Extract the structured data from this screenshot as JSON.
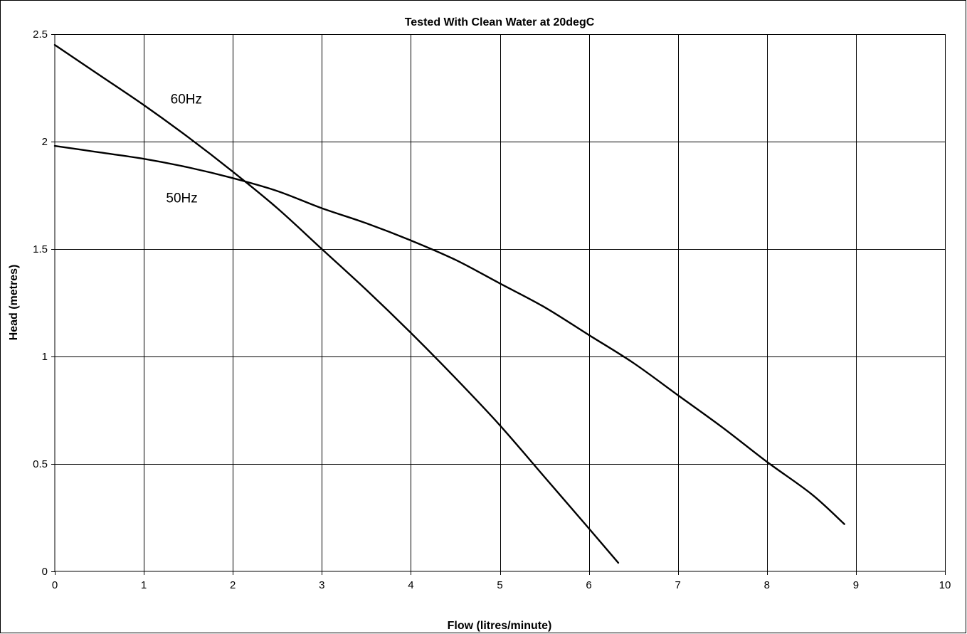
{
  "chart_data": {
    "type": "line",
    "title": "Tested With Clean Water at 20degC",
    "xlabel": "Flow (litres/minute)",
    "ylabel": "Head (metres)",
    "xlim": [
      0,
      10
    ],
    "ylim": [
      0,
      2.5
    ],
    "x_ticks": [
      "0",
      "1",
      "2",
      "3",
      "4",
      "5",
      "6",
      "7",
      "8",
      "9",
      "10"
    ],
    "y_ticks": [
      "0",
      "0.5",
      "1",
      "1.5",
      "2",
      "2.5"
    ],
    "grid": true,
    "legend": "none",
    "line_color": "#000000",
    "series": [
      {
        "name": "60Hz",
        "label_anchor": [
          1.3,
          2.2
        ],
        "x": [
          0,
          0.5,
          1,
          1.5,
          2,
          2.5,
          3,
          3.5,
          4,
          4.5,
          5,
          5.5,
          6,
          6.33
        ],
        "y": [
          2.45,
          2.31,
          2.17,
          2.02,
          1.86,
          1.69,
          1.5,
          1.31,
          1.11,
          0.9,
          0.68,
          0.44,
          0.2,
          0.04
        ]
      },
      {
        "name": "50Hz",
        "label_anchor": [
          1.25,
          1.74
        ],
        "x": [
          0,
          0.5,
          1,
          1.5,
          2,
          2.5,
          3,
          3.5,
          4,
          4.5,
          5,
          5.5,
          6,
          6.5,
          7,
          7.5,
          8,
          8.5,
          8.87
        ],
        "y": [
          1.98,
          1.95,
          1.92,
          1.88,
          1.83,
          1.77,
          1.69,
          1.62,
          1.54,
          1.45,
          1.34,
          1.23,
          1.1,
          0.97,
          0.82,
          0.67,
          0.51,
          0.36,
          0.22
        ]
      }
    ]
  }
}
